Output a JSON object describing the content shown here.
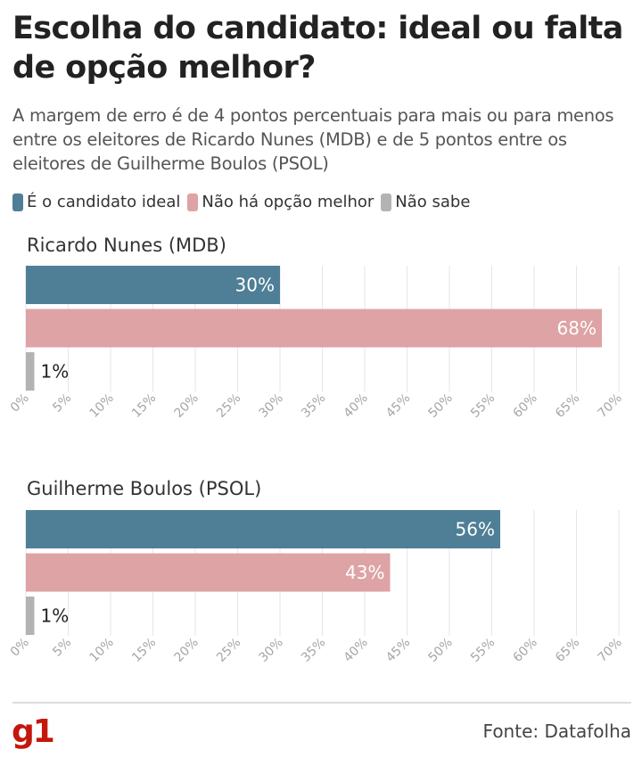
{
  "title": "Escolha do candidato: ideal ou falta de opção melhor?",
  "subtitle": "A margem de erro é de 4 pontos percentuais para mais ou para menos entre os eleitores de Ricardo Nunes (MDB) e de 5 pontos entre os eleitores de Guilherme Boulos (PSOL)",
  "legend": [
    {
      "label": "É o candidato ideal",
      "color": "#4e7f96"
    },
    {
      "label": "Não há opção melhor",
      "color": "#dea3a4"
    },
    {
      "label": "Não sabe",
      "color": "#b3b3b3"
    }
  ],
  "chart_data": [
    {
      "type": "bar",
      "orientation": "horizontal",
      "title": "Ricardo Nunes (MDB)",
      "categories": [
        "É o candidato ideal",
        "Não há opção melhor",
        "Não sabe"
      ],
      "values": [
        30,
        68,
        1
      ],
      "data_labels": [
        "30%",
        "68%",
        "1%"
      ],
      "colors": [
        "#4e7f96",
        "#dea3a4",
        "#b3b3b3"
      ],
      "xlim": [
        0,
        70
      ],
      "x_ticks": [
        "0%",
        "5%",
        "10%",
        "15%",
        "20%",
        "25%",
        "30%",
        "35%",
        "40%",
        "45%",
        "50%",
        "55%",
        "60%",
        "65%",
        "70%"
      ],
      "grid": true
    },
    {
      "type": "bar",
      "orientation": "horizontal",
      "title": "Guilherme Boulos (PSOL)",
      "categories": [
        "É o candidato ideal",
        "Não há opção melhor",
        "Não sabe"
      ],
      "values": [
        56,
        43,
        1
      ],
      "data_labels": [
        "56%",
        "43%",
        "1%"
      ],
      "colors": [
        "#4e7f96",
        "#dea3a4",
        "#b3b3b3"
      ],
      "xlim": [
        0,
        70
      ],
      "x_ticks": [
        "0%",
        "5%",
        "10%",
        "15%",
        "20%",
        "25%",
        "30%",
        "35%",
        "40%",
        "45%",
        "50%",
        "55%",
        "60%",
        "65%",
        "70%"
      ],
      "grid": true
    }
  ],
  "logo_text": "g1",
  "source": "Fonte: Datafolha"
}
